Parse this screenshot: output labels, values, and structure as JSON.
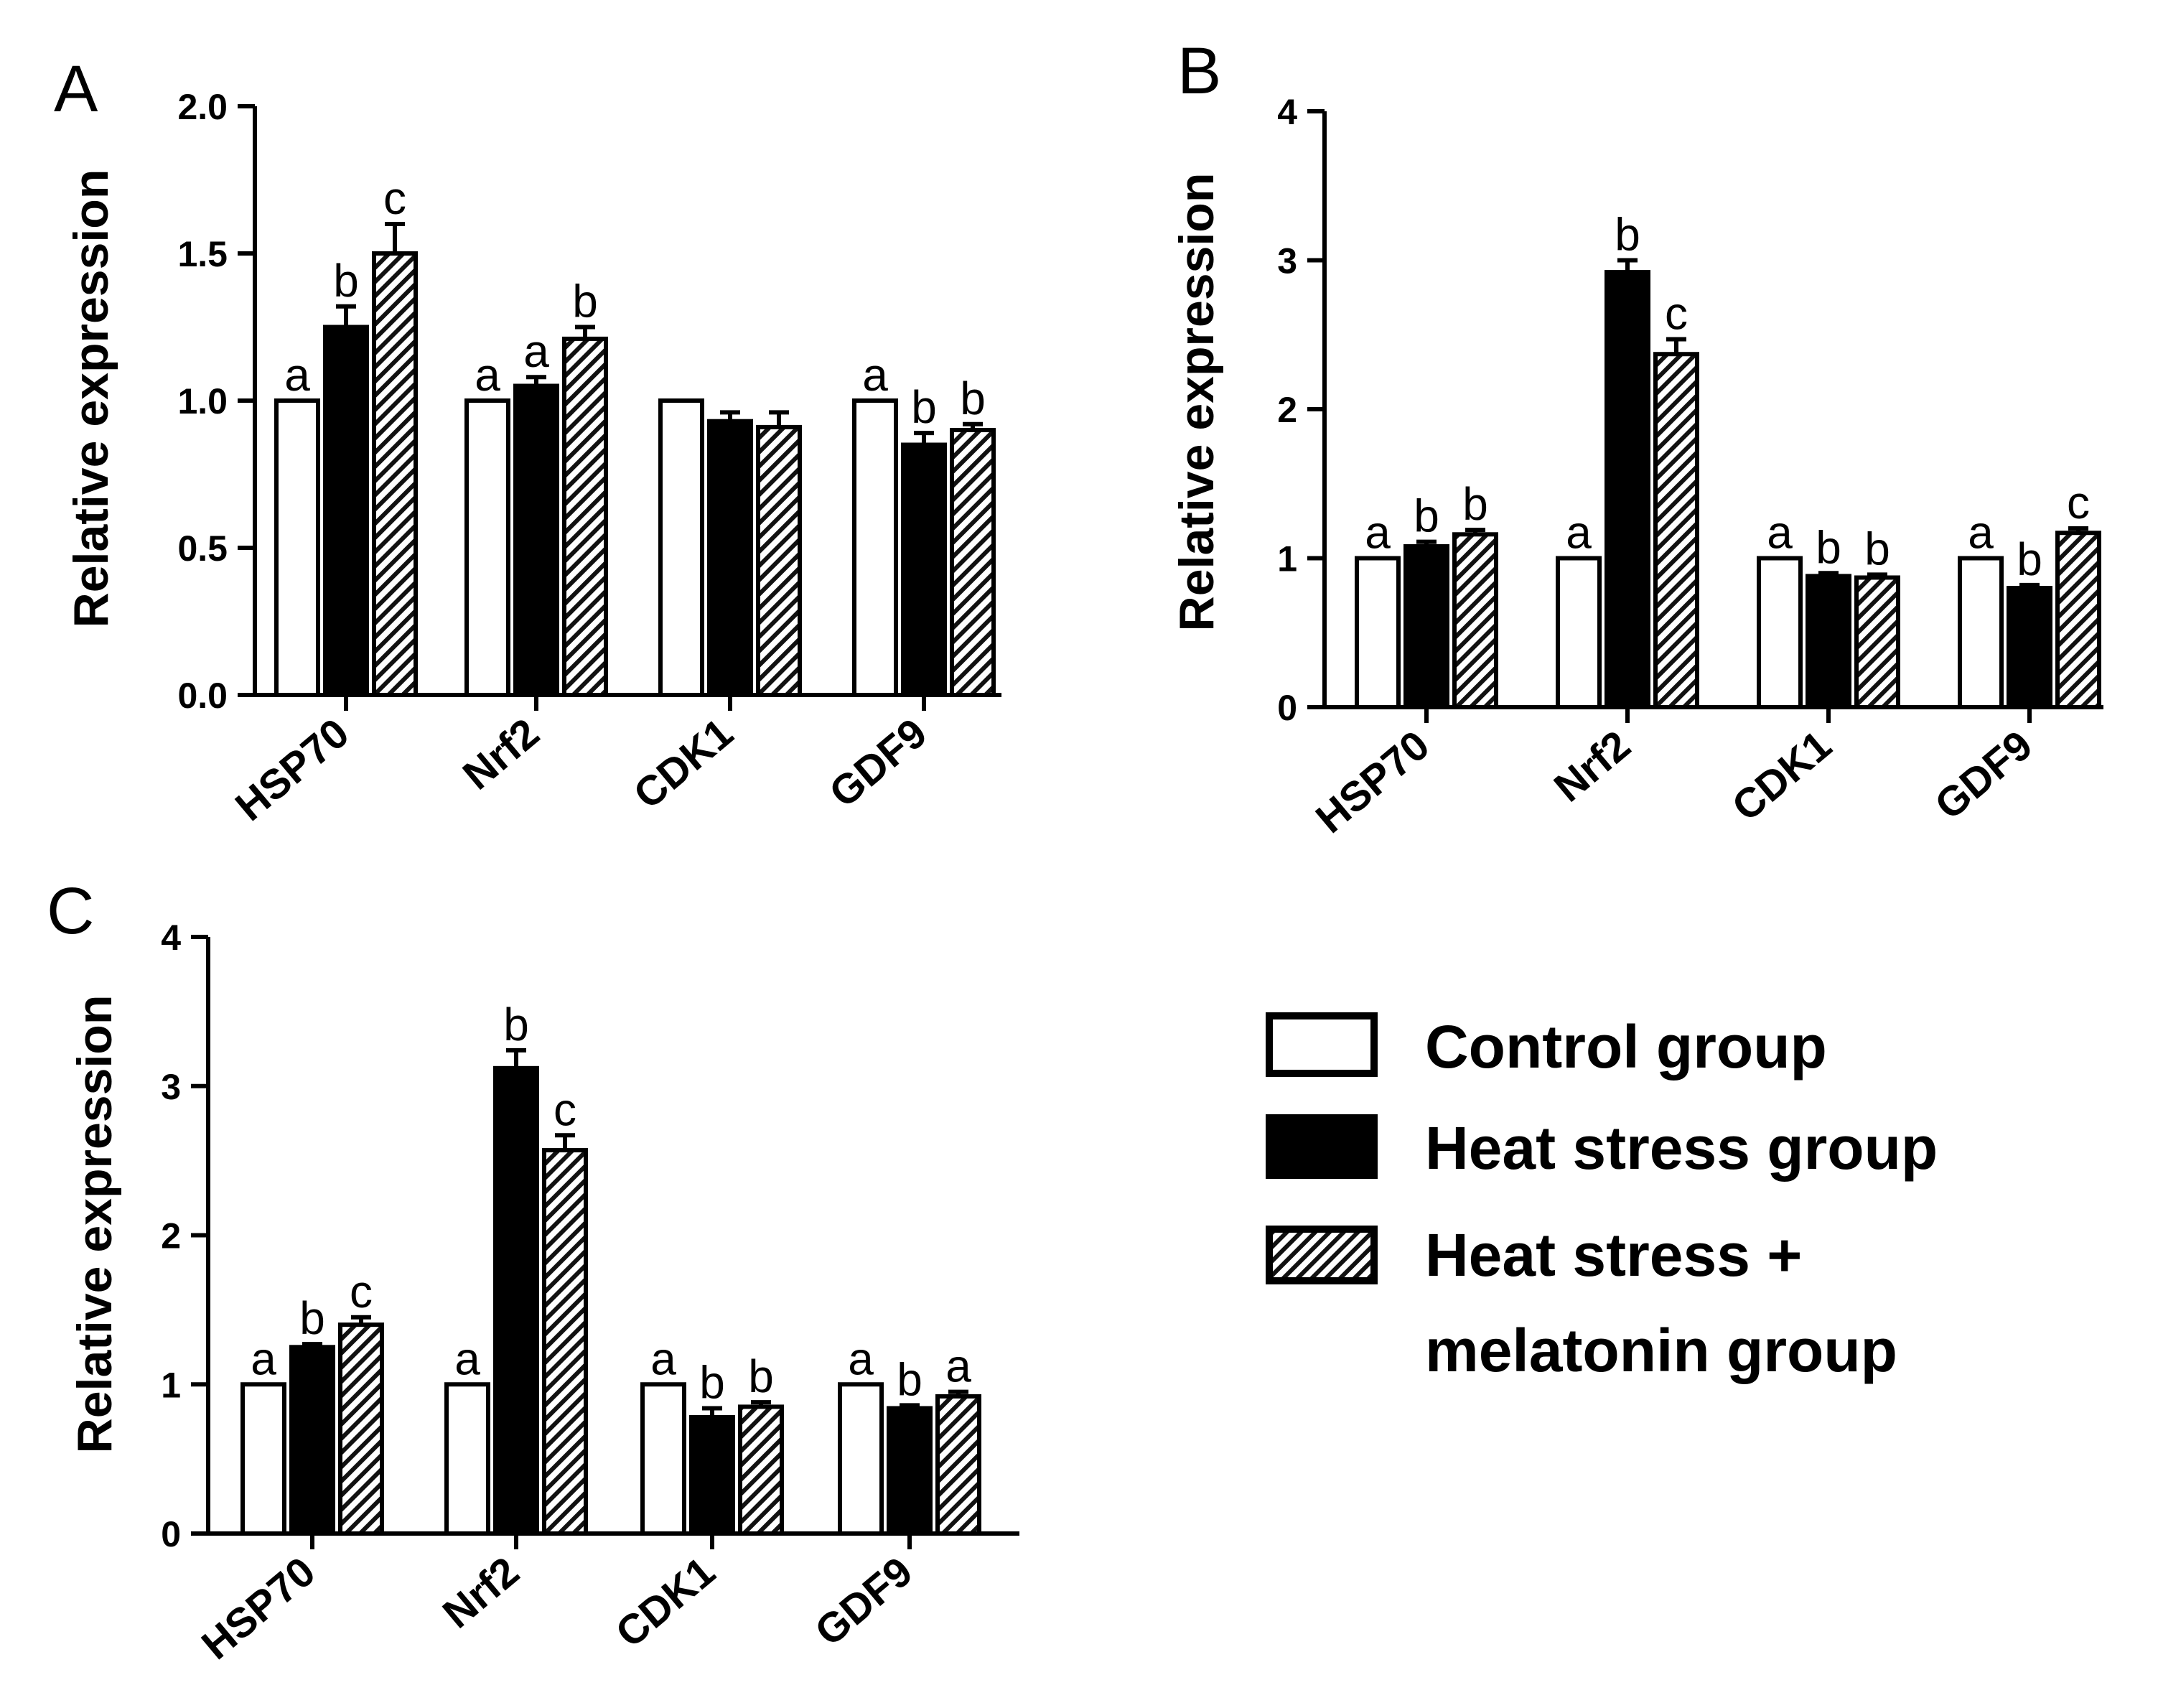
{
  "legend": {
    "items": [
      {
        "label": "Control group",
        "style": "open"
      },
      {
        "label": "Heat stress group",
        "style": "solid"
      },
      {
        "label": "Heat stress +",
        "style": "hatched"
      }
    ],
    "continuation": "melatonin group"
  },
  "chart_data": [
    {
      "panel": "A",
      "type": "bar",
      "ylabel": "Relative expression",
      "ylim": [
        0,
        2.0
      ],
      "yticks": [
        "0.0",
        "0.5",
        "1.0",
        "1.5",
        "2.0"
      ],
      "categories": [
        "HSP70",
        "Nrf2",
        "CDK1",
        "GDF9"
      ],
      "series": [
        {
          "name": "Control group",
          "values": [
            1.0,
            1.0,
            1.0,
            1.0
          ],
          "errors": [
            0,
            0,
            0,
            0
          ],
          "labels": [
            "a",
            "a",
            "",
            "a"
          ]
        },
        {
          "name": "Heat stress group",
          "values": [
            1.25,
            1.05,
            0.93,
            0.85
          ],
          "errors": [
            0.07,
            0.03,
            0.03,
            0.04
          ],
          "labels": [
            "b",
            "a",
            "",
            "b"
          ]
        },
        {
          "name": "Heat stress + melatonin group",
          "values": [
            1.5,
            1.21,
            0.91,
            0.9
          ],
          "errors": [
            0.1,
            0.04,
            0.05,
            0.02
          ],
          "labels": [
            "c",
            "b",
            "",
            "b"
          ]
        }
      ]
    },
    {
      "panel": "B",
      "type": "bar",
      "ylabel": "Relative expression",
      "ylim": [
        0,
        4
      ],
      "yticks": [
        "0",
        "1",
        "2",
        "3",
        "4"
      ],
      "categories": [
        "HSP70",
        "Nrf2",
        "CDK1",
        "GDF9"
      ],
      "series": [
        {
          "name": "Control group",
          "values": [
            1.0,
            1.0,
            1.0,
            1.0
          ],
          "errors": [
            0,
            0,
            0,
            0
          ],
          "labels": [
            "a",
            "a",
            "a",
            "a"
          ]
        },
        {
          "name": "Heat stress group",
          "values": [
            1.08,
            2.92,
            0.88,
            0.8
          ],
          "errors": [
            0.03,
            0.08,
            0.02,
            0.02
          ],
          "labels": [
            "b",
            "b",
            "b",
            "b"
          ]
        },
        {
          "name": "Heat stress + melatonin group",
          "values": [
            1.16,
            2.37,
            0.87,
            1.17
          ],
          "errors": [
            0.03,
            0.1,
            0.02,
            0.03
          ],
          "labels": [
            "b",
            "c",
            "b",
            "c"
          ]
        }
      ]
    },
    {
      "panel": "C",
      "type": "bar",
      "ylabel": "Relative expression",
      "ylim": [
        0,
        4
      ],
      "yticks": [
        "0",
        "1",
        "2",
        "3",
        "4"
      ],
      "categories": [
        "HSP70",
        "Nrf2",
        "CDK1",
        "GDF9"
      ],
      "series": [
        {
          "name": "Control group",
          "values": [
            1.0,
            1.0,
            1.0,
            1.0
          ],
          "errors": [
            0,
            0,
            0,
            0
          ],
          "labels": [
            "a",
            "a",
            "a",
            "a"
          ]
        },
        {
          "name": "Heat stress group",
          "values": [
            1.25,
            3.12,
            0.78,
            0.84
          ],
          "errors": [
            0.02,
            0.12,
            0.06,
            0.02
          ],
          "labels": [
            "b",
            "b",
            "b",
            "b"
          ]
        },
        {
          "name": "Heat stress + melatonin group",
          "values": [
            1.4,
            2.57,
            0.85,
            0.92
          ],
          "errors": [
            0.05,
            0.1,
            0.03,
            0.03
          ],
          "labels": [
            "c",
            "c",
            "b",
            "a"
          ]
        }
      ]
    }
  ]
}
